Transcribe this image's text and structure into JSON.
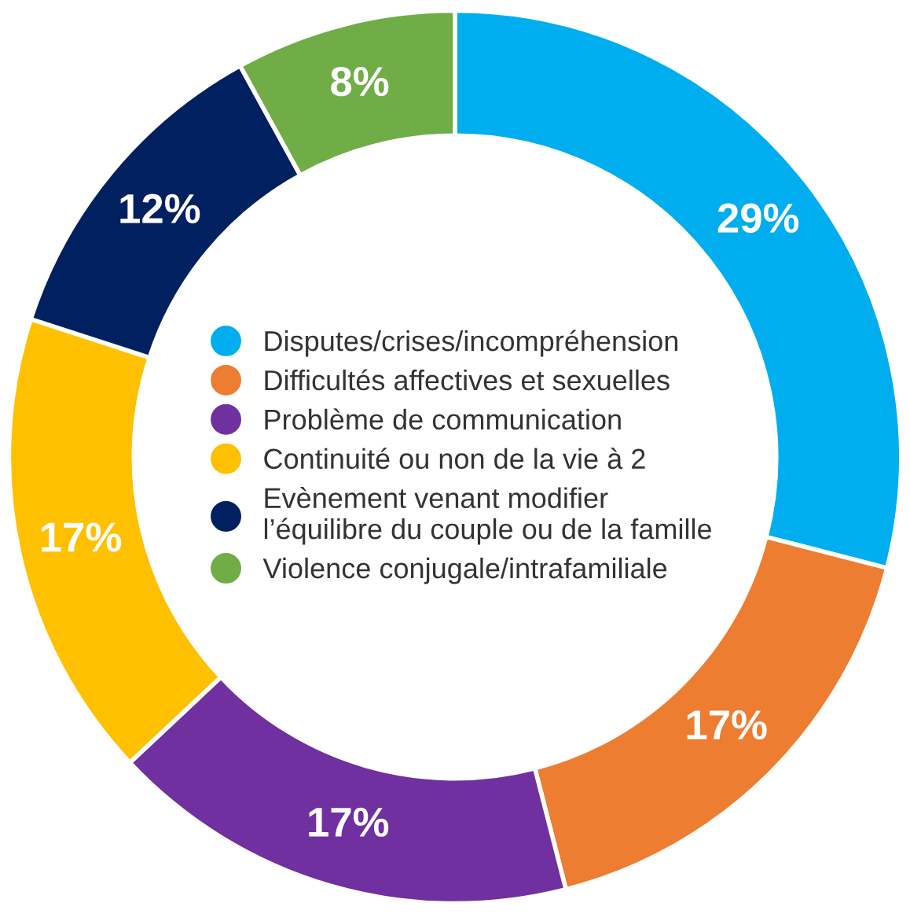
{
  "chart_data": {
    "type": "donut",
    "categories": [
      "Disputes/crises/incompréhension",
      "Difficultés affectives et sexuelles",
      "Problème de communication",
      "Continuité ou non de la vie à 2",
      "Evènement venant modifier\nl’équilibre du couple ou de la famille",
      "Violence conjugale/intrafamiliale"
    ],
    "values": [
      29,
      17,
      17,
      17,
      12,
      8
    ],
    "colors": [
      "#00aeef",
      "#ed7d31",
      "#7030a0",
      "#ffc000",
      "#002060",
      "#70ad47"
    ],
    "value_labels": [
      "29%",
      "17%",
      "17%",
      "17%",
      "12%",
      "8%"
    ],
    "legend": "center"
  }
}
